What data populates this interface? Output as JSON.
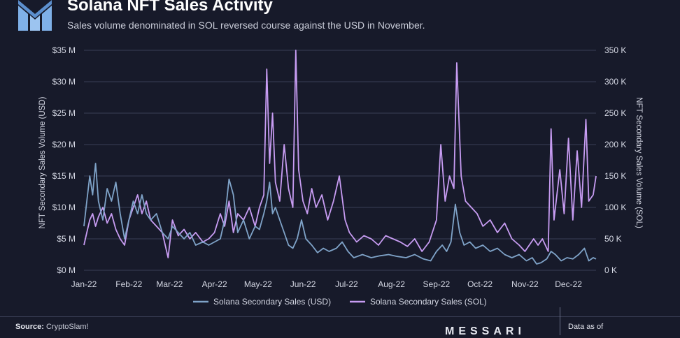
{
  "header": {
    "title": "Solana NFT Sales Activity",
    "subtitle": "Sales volume denominated in SOL reversed course against the USD in November."
  },
  "footer": {
    "source_label": "Source:",
    "source_value": "CryptoSlam!",
    "brand": "MESSARI",
    "data_as_of": "Data as of"
  },
  "colors": {
    "background": "#171a2a",
    "usd_series": "#7fa3c8",
    "sol_series": "#c79cf2",
    "grid": "#3a3f55",
    "logo": "#7fb0e8"
  },
  "icons": {
    "logo": "messari-logo-icon"
  },
  "chart_data": {
    "type": "line",
    "title": "Solana NFT Sales Activity",
    "x_range": [
      "2022-01-01",
      "2022-12-20"
    ],
    "x_ticks": [
      "Jan-22",
      "Feb-22",
      "Mar-22",
      "Apr-22",
      "May-22",
      "Jun-22",
      "Jul-22",
      "Aug-22",
      "Sep-22",
      "Oct-22",
      "Nov-22",
      "Dec-22"
    ],
    "y_left": {
      "label": "NFT Secondary Sales Volume (USD)",
      "range": [
        0,
        35000000
      ],
      "ticks": [
        "$0 M",
        "$5 M",
        "$10 M",
        "$15 M",
        "$20 M",
        "$25 M",
        "$30 M",
        "$35 M"
      ]
    },
    "y_right": {
      "label": "NFT Secondary Sales Volume (SOL)",
      "range": [
        0,
        350000
      ],
      "ticks": [
        "0 K",
        "50 K",
        "100 K",
        "150 K",
        "200 K",
        "250 K",
        "300 K",
        "350 K"
      ]
    },
    "grid": true,
    "legend_position": "bottom-center",
    "series": [
      {
        "name": "Solana Secondary Sales (USD)",
        "axis": "left",
        "color": "#7fa3c8",
        "points": [
          [
            "2022-01-01",
            7000000
          ],
          [
            "2022-01-03",
            11000000
          ],
          [
            "2022-01-05",
            15000000
          ],
          [
            "2022-01-07",
            12000000
          ],
          [
            "2022-01-09",
            17000000
          ],
          [
            "2022-01-11",
            11000000
          ],
          [
            "2022-01-14",
            8000000
          ],
          [
            "2022-01-17",
            13000000
          ],
          [
            "2022-01-20",
            11000000
          ],
          [
            "2022-01-23",
            14000000
          ],
          [
            "2022-01-26",
            9000000
          ],
          [
            "2022-01-29",
            5000000
          ],
          [
            "2022-02-01",
            8000000
          ],
          [
            "2022-02-04",
            11000000
          ],
          [
            "2022-02-07",
            9000000
          ],
          [
            "2022-02-10",
            12000000
          ],
          [
            "2022-02-13",
            9000000
          ],
          [
            "2022-02-16",
            8000000
          ],
          [
            "2022-02-20",
            9000000
          ],
          [
            "2022-02-24",
            6000000
          ],
          [
            "2022-02-28",
            5000000
          ],
          [
            "2022-03-03",
            7000000
          ],
          [
            "2022-03-07",
            6000000
          ],
          [
            "2022-03-11",
            5000000
          ],
          [
            "2022-03-15",
            6000000
          ],
          [
            "2022-03-19",
            4000000
          ],
          [
            "2022-03-24",
            4500000
          ],
          [
            "2022-03-28",
            4000000
          ],
          [
            "2022-04-01",
            4500000
          ],
          [
            "2022-04-05",
            5000000
          ],
          [
            "2022-04-08",
            8000000
          ],
          [
            "2022-04-11",
            14500000
          ],
          [
            "2022-04-14",
            12000000
          ],
          [
            "2022-04-17",
            6000000
          ],
          [
            "2022-04-21",
            8000000
          ],
          [
            "2022-04-25",
            5000000
          ],
          [
            "2022-04-29",
            7000000
          ],
          [
            "2022-05-02",
            6500000
          ],
          [
            "2022-05-05",
            9000000
          ],
          [
            "2022-05-07",
            11000000
          ],
          [
            "2022-05-09",
            14000000
          ],
          [
            "2022-05-11",
            9000000
          ],
          [
            "2022-05-13",
            10000000
          ],
          [
            "2022-05-16",
            8000000
          ],
          [
            "2022-05-19",
            6000000
          ],
          [
            "2022-05-22",
            4000000
          ],
          [
            "2022-05-25",
            3500000
          ],
          [
            "2022-05-28",
            5000000
          ],
          [
            "2022-05-31",
            8000000
          ],
          [
            "2022-06-03",
            5000000
          ],
          [
            "2022-06-07",
            4000000
          ],
          [
            "2022-06-11",
            2800000
          ],
          [
            "2022-06-15",
            3500000
          ],
          [
            "2022-06-19",
            3000000
          ],
          [
            "2022-06-24",
            3500000
          ],
          [
            "2022-06-28",
            4500000
          ],
          [
            "2022-07-02",
            3000000
          ],
          [
            "2022-07-06",
            2000000
          ],
          [
            "2022-07-12",
            2500000
          ],
          [
            "2022-07-18",
            2000000
          ],
          [
            "2022-07-24",
            2300000
          ],
          [
            "2022-07-30",
            2500000
          ],
          [
            "2022-08-05",
            2200000
          ],
          [
            "2022-08-11",
            2000000
          ],
          [
            "2022-08-17",
            2500000
          ],
          [
            "2022-08-23",
            1800000
          ],
          [
            "2022-08-28",
            1500000
          ],
          [
            "2022-09-01",
            3000000
          ],
          [
            "2022-09-05",
            4000000
          ],
          [
            "2022-09-08",
            3000000
          ],
          [
            "2022-09-11",
            4500000
          ],
          [
            "2022-09-14",
            10500000
          ],
          [
            "2022-09-17",
            6000000
          ],
          [
            "2022-09-20",
            4000000
          ],
          [
            "2022-09-24",
            4500000
          ],
          [
            "2022-09-28",
            3500000
          ],
          [
            "2022-10-03",
            4000000
          ],
          [
            "2022-10-08",
            3000000
          ],
          [
            "2022-10-13",
            3500000
          ],
          [
            "2022-10-18",
            2500000
          ],
          [
            "2022-10-23",
            2000000
          ],
          [
            "2022-10-28",
            2500000
          ],
          [
            "2022-11-02",
            1500000
          ],
          [
            "2022-11-06",
            2000000
          ],
          [
            "2022-11-09",
            1000000
          ],
          [
            "2022-11-12",
            1200000
          ],
          [
            "2022-11-16",
            1800000
          ],
          [
            "2022-11-19",
            3000000
          ],
          [
            "2022-11-22",
            2500000
          ],
          [
            "2022-11-26",
            1500000
          ],
          [
            "2022-11-30",
            2000000
          ],
          [
            "2022-12-04",
            1800000
          ],
          [
            "2022-12-08",
            2500000
          ],
          [
            "2022-12-12",
            3500000
          ],
          [
            "2022-12-15",
            1500000
          ],
          [
            "2022-12-18",
            2000000
          ],
          [
            "2022-12-20",
            1800000
          ]
        ]
      },
      {
        "name": "Solana Secondary Sales (SOL)",
        "axis": "right",
        "color": "#c79cf2",
        "points": [
          [
            "2022-01-01",
            40000
          ],
          [
            "2022-01-03",
            60000
          ],
          [
            "2022-01-05",
            80000
          ],
          [
            "2022-01-07",
            90000
          ],
          [
            "2022-01-09",
            70000
          ],
          [
            "2022-01-11",
            85000
          ],
          [
            "2022-01-14",
            100000
          ],
          [
            "2022-01-17",
            75000
          ],
          [
            "2022-01-20",
            90000
          ],
          [
            "2022-01-23",
            65000
          ],
          [
            "2022-01-26",
            50000
          ],
          [
            "2022-01-29",
            40000
          ],
          [
            "2022-02-01",
            80000
          ],
          [
            "2022-02-04",
            100000
          ],
          [
            "2022-02-07",
            120000
          ],
          [
            "2022-02-10",
            90000
          ],
          [
            "2022-02-13",
            110000
          ],
          [
            "2022-02-16",
            80000
          ],
          [
            "2022-02-20",
            70000
          ],
          [
            "2022-02-24",
            60000
          ],
          [
            "2022-02-28",
            20000
          ],
          [
            "2022-03-03",
            80000
          ],
          [
            "2022-03-07",
            55000
          ],
          [
            "2022-03-11",
            65000
          ],
          [
            "2022-03-15",
            50000
          ],
          [
            "2022-03-19",
            60000
          ],
          [
            "2022-03-24",
            45000
          ],
          [
            "2022-03-28",
            50000
          ],
          [
            "2022-04-01",
            60000
          ],
          [
            "2022-04-05",
            90000
          ],
          [
            "2022-04-08",
            70000
          ],
          [
            "2022-04-11",
            110000
          ],
          [
            "2022-04-14",
            60000
          ],
          [
            "2022-04-17",
            90000
          ],
          [
            "2022-04-21",
            80000
          ],
          [
            "2022-04-25",
            100000
          ],
          [
            "2022-04-29",
            70000
          ],
          [
            "2022-05-02",
            100000
          ],
          [
            "2022-05-05",
            120000
          ],
          [
            "2022-05-07",
            320000
          ],
          [
            "2022-05-09",
            170000
          ],
          [
            "2022-05-11",
            250000
          ],
          [
            "2022-05-13",
            140000
          ],
          [
            "2022-05-16",
            110000
          ],
          [
            "2022-05-19",
            200000
          ],
          [
            "2022-05-22",
            130000
          ],
          [
            "2022-05-25",
            100000
          ],
          [
            "2022-05-27",
            350000
          ],
          [
            "2022-05-29",
            160000
          ],
          [
            "2022-06-01",
            110000
          ],
          [
            "2022-06-04",
            90000
          ],
          [
            "2022-06-07",
            130000
          ],
          [
            "2022-06-10",
            100000
          ],
          [
            "2022-06-14",
            120000
          ],
          [
            "2022-06-18",
            80000
          ],
          [
            "2022-06-22",
            110000
          ],
          [
            "2022-06-26",
            150000
          ],
          [
            "2022-06-30",
            80000
          ],
          [
            "2022-07-03",
            60000
          ],
          [
            "2022-07-08",
            45000
          ],
          [
            "2022-07-13",
            55000
          ],
          [
            "2022-07-18",
            50000
          ],
          [
            "2022-07-23",
            40000
          ],
          [
            "2022-07-28",
            55000
          ],
          [
            "2022-08-02",
            50000
          ],
          [
            "2022-08-07",
            45000
          ],
          [
            "2022-08-12",
            38000
          ],
          [
            "2022-08-17",
            50000
          ],
          [
            "2022-08-22",
            30000
          ],
          [
            "2022-08-27",
            45000
          ],
          [
            "2022-09-01",
            80000
          ],
          [
            "2022-09-04",
            200000
          ],
          [
            "2022-09-07",
            110000
          ],
          [
            "2022-09-10",
            150000
          ],
          [
            "2022-09-13",
            130000
          ],
          [
            "2022-09-15",
            330000
          ],
          [
            "2022-09-18",
            150000
          ],
          [
            "2022-09-21",
            110000
          ],
          [
            "2022-09-25",
            100000
          ],
          [
            "2022-09-29",
            90000
          ],
          [
            "2022-10-03",
            70000
          ],
          [
            "2022-10-08",
            80000
          ],
          [
            "2022-10-13",
            60000
          ],
          [
            "2022-10-18",
            75000
          ],
          [
            "2022-10-23",
            50000
          ],
          [
            "2022-10-28",
            40000
          ],
          [
            "2022-11-01",
            30000
          ],
          [
            "2022-11-04",
            40000
          ],
          [
            "2022-11-07",
            50000
          ],
          [
            "2022-11-10",
            40000
          ],
          [
            "2022-11-13",
            50000
          ],
          [
            "2022-11-17",
            30000
          ],
          [
            "2022-11-19",
            225000
          ],
          [
            "2022-11-21",
            80000
          ],
          [
            "2022-11-25",
            160000
          ],
          [
            "2022-11-28",
            90000
          ],
          [
            "2022-12-01",
            210000
          ],
          [
            "2022-12-04",
            80000
          ],
          [
            "2022-12-07",
            190000
          ],
          [
            "2022-12-10",
            100000
          ],
          [
            "2022-12-13",
            240000
          ],
          [
            "2022-12-15",
            110000
          ],
          [
            "2022-12-18",
            120000
          ],
          [
            "2022-12-20",
            150000
          ]
        ]
      }
    ]
  }
}
